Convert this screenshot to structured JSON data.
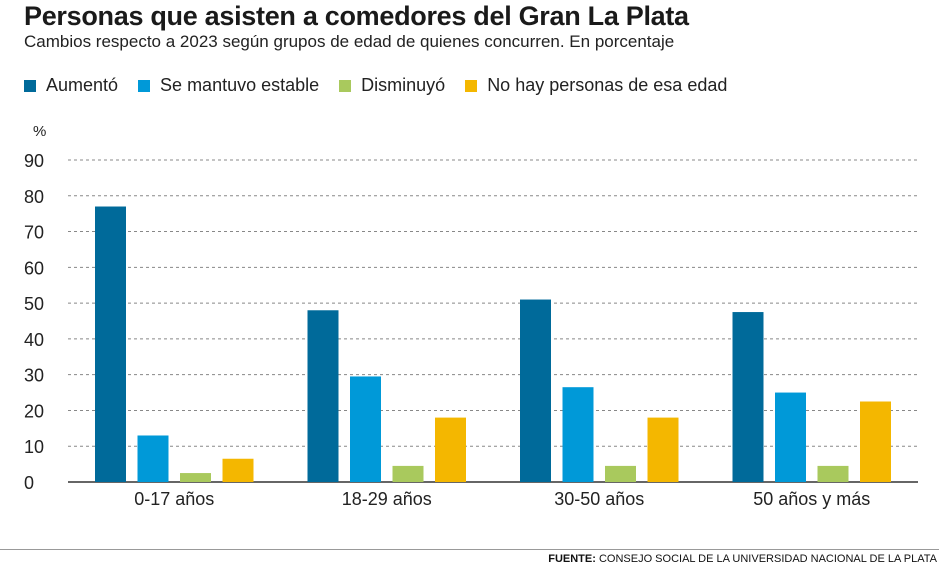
{
  "title": "Personas que asisten a comedores del Gran La Plata",
  "subtitle": "Cambios respecto a 2023 según grupos de edad de quienes concurren. En porcentaje",
  "source": {
    "label": "FUENTE:",
    "text": "CONSEJO SOCIAL DE LA UNIVERSIDAD NACIONAL DE LA PLATA"
  },
  "chart_data": {
    "type": "bar",
    "title": "Personas que asisten a comedores del Gran La Plata",
    "subtitle": "Cambios respecto a 2023 según grupos de edad de quienes concurren. En porcentaje",
    "xlabel": "",
    "ylabel": "%",
    "ylim": [
      0,
      90
    ],
    "yticks": [
      0,
      10,
      20,
      30,
      40,
      50,
      60,
      70,
      80,
      90
    ],
    "grid": "horizontal dashed",
    "legend_position": "top",
    "categories": [
      "0-17 años",
      "18-29 años",
      "30-50 años",
      "50 años y más"
    ],
    "series": [
      {
        "name": "Aumentó",
        "color": "#006a9a",
        "values": [
          77,
          48,
          51,
          47.5
        ]
      },
      {
        "name": "Se mantuvo estable",
        "color": "#0099d8",
        "values": [
          13,
          29.5,
          26.5,
          25
        ]
      },
      {
        "name": "Disminuyó",
        "color": "#a9c95d",
        "values": [
          2.5,
          4.5,
          4.5,
          4.5
        ]
      },
      {
        "name": "No hay personas de esa edad",
        "color": "#f4b700",
        "values": [
          6.5,
          18,
          18,
          22.5
        ]
      }
    ]
  }
}
